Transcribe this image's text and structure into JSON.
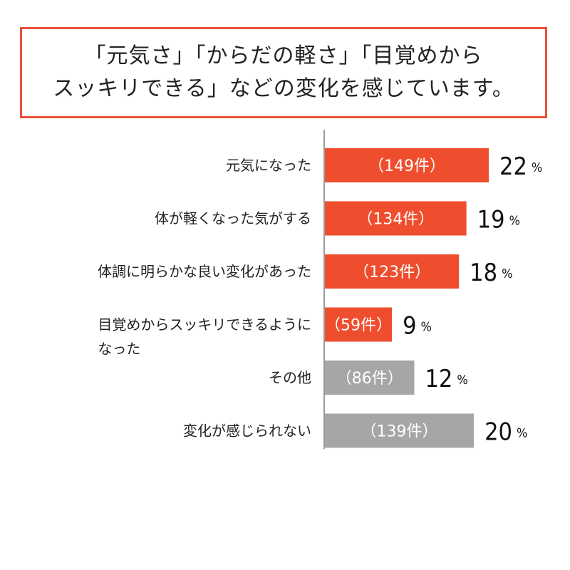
{
  "headline": {
    "line1": "「元気さ」「からだの軽さ」「目覚めから",
    "line2": "スッキリできる」などの変化を感じています。"
  },
  "colors": {
    "highlight": "#ee4e2e",
    "muted": "#a6a6a6",
    "frame": "#e8513a",
    "axis": "#999999"
  },
  "chart_data": {
    "type": "bar",
    "orientation": "horizontal",
    "title": "「元気さ」「からだの軽さ」「目覚めからスッキリできる」などの変化を感じています。",
    "categories": [
      [
        "元気になった"
      ],
      [
        "体が軽くなった気がする"
      ],
      [
        "体調に明らかな良い変化があった"
      ],
      [
        "目覚めからスッキリできるように",
        "なった"
      ],
      [
        "その他"
      ],
      [
        "変化が感じられない"
      ]
    ],
    "values": [
      22,
      19,
      18,
      9,
      12,
      20
    ],
    "value_unit": "%",
    "counts": [
      "（149件）",
      "（134件）",
      "（123件）",
      "（59件）",
      "（86件）",
      "（139件）"
    ],
    "bar_colors": [
      "#ee4e2e",
      "#ee4e2e",
      "#ee4e2e",
      "#ee4e2e",
      "#a6a6a6",
      "#a6a6a6"
    ],
    "xlim": [
      0,
      22
    ],
    "grid": false,
    "legend": "none"
  }
}
